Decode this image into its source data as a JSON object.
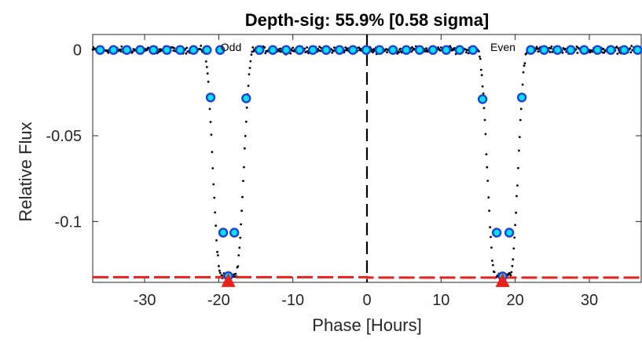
{
  "chart_data": {
    "type": "scatter",
    "title": "Depth-sig: 55.9% [0.58 sigma]",
    "xlabel": "Phase [Hours]",
    "ylabel": "Relative Flux",
    "xlim": [
      -37,
      37
    ],
    "ylim": [
      -0.1355,
      0.009
    ],
    "xticks": [
      -30,
      -20,
      -10,
      0,
      10,
      20,
      30
    ],
    "xtick_labels": [
      "-30",
      "-20",
      "-10",
      "0",
      "10",
      "20",
      "30"
    ],
    "yticks": [
      0,
      -0.05,
      -0.1
    ],
    "ytick_labels": [
      "0",
      "-0.05",
      "-0.1"
    ],
    "grid": false,
    "annotations": [
      {
        "text": "Odd",
        "x": -18.7,
        "y": 0.004
      },
      {
        "text": "Even",
        "x": 18.3,
        "y": 0.004
      }
    ],
    "transits": [
      {
        "name": "Odd",
        "center": -18.7,
        "depth": -0.1315
      },
      {
        "name": "Even",
        "center": 18.3,
        "depth": -0.1317
      }
    ],
    "binned_points": [
      {
        "x": -36.0,
        "y": 0.0
      },
      {
        "x": -34.2,
        "y": 0.0
      },
      {
        "x": -32.4,
        "y": 0.0
      },
      {
        "x": -30.6,
        "y": 0.0
      },
      {
        "x": -28.8,
        "y": 0.0
      },
      {
        "x": -27.0,
        "y": 0.0
      },
      {
        "x": -25.2,
        "y": 0.0
      },
      {
        "x": -23.4,
        "y": 0.0
      },
      {
        "x": -21.6,
        "y": 0.0
      },
      {
        "x": -19.8,
        "y": 0.0
      },
      {
        "x": -19.4,
        "y": -0.1065
      },
      {
        "x": -17.9,
        "y": -0.1065
      },
      {
        "x": -18.7,
        "y": -0.1318
      },
      {
        "x": -21.1,
        "y": -0.0277
      },
      {
        "x": -16.3,
        "y": -0.0282
      },
      {
        "x": -14.5,
        "y": 0.0
      },
      {
        "x": -12.7,
        "y": 0.0
      },
      {
        "x": -10.9,
        "y": 0.0
      },
      {
        "x": -9.1,
        "y": 0.0
      },
      {
        "x": -7.3,
        "y": 0.0
      },
      {
        "x": -5.5,
        "y": 0.0
      },
      {
        "x": -3.7,
        "y": 0.0
      },
      {
        "x": -1.9,
        "y": 0.0
      },
      {
        "x": -0.1,
        "y": 0.0
      },
      {
        "x": 1.7,
        "y": 0.0
      },
      {
        "x": 3.5,
        "y": 0.0
      },
      {
        "x": 5.3,
        "y": 0.0
      },
      {
        "x": 7.1,
        "y": 0.0
      },
      {
        "x": 8.9,
        "y": 0.0
      },
      {
        "x": 10.7,
        "y": 0.0
      },
      {
        "x": 12.5,
        "y": 0.0
      },
      {
        "x": 14.3,
        "y": 0.0
      },
      {
        "x": 15.6,
        "y": -0.0287
      },
      {
        "x": 20.9,
        "y": -0.0277
      },
      {
        "x": 17.5,
        "y": -0.1065
      },
      {
        "x": 19.2,
        "y": -0.1065
      },
      {
        "x": 18.3,
        "y": -0.132
      },
      {
        "x": 22.1,
        "y": 0.0
      },
      {
        "x": 23.9,
        "y": 0.0
      },
      {
        "x": 25.7,
        "y": 0.0
      },
      {
        "x": 27.5,
        "y": 0.0
      },
      {
        "x": 29.3,
        "y": 0.0
      },
      {
        "x": 31.1,
        "y": 0.0
      },
      {
        "x": 32.9,
        "y": 0.0
      },
      {
        "x": 34.7,
        "y": 0.0
      },
      {
        "x": 36.5,
        "y": 0.0
      }
    ],
    "depth_line": {
      "x": [
        -37,
        0,
        0,
        37
      ],
      "y": [
        -0.1325,
        -0.1325,
        -0.1327,
        -0.1327
      ]
    },
    "depth_markers": [
      {
        "x": -18.7,
        "y": -0.1345
      },
      {
        "x": 18.3,
        "y": -0.1345
      }
    ],
    "center_line_x": 0,
    "colors": {
      "raw": "#000000",
      "binned_fill": "#00e5ff",
      "binned_edge": "#1f3fd6",
      "depth": "#e8211b",
      "axis": "#262626"
    }
  }
}
